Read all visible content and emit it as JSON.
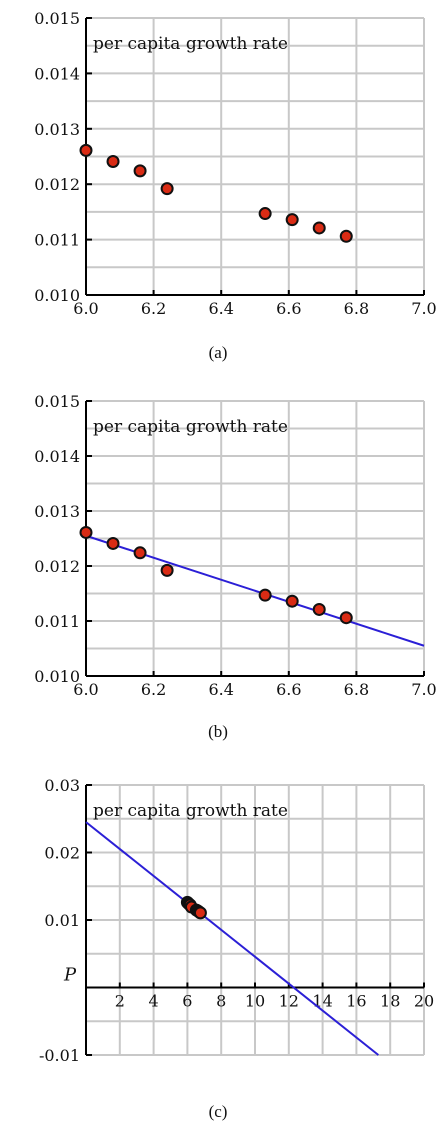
{
  "chart_data": [
    {
      "type": "scatter",
      "title": "per capita growth rate",
      "caption": "(a)",
      "xlim": [
        6.0,
        7.0
      ],
      "ylim": [
        0.01,
        0.015
      ],
      "xticks": [
        "6.0",
        "6.2",
        "6.4",
        "6.6",
        "6.8",
        "7.0"
      ],
      "yticks": [
        "0.010",
        "0.011",
        "0.012",
        "0.013",
        "0.014",
        "0.015"
      ],
      "grid": true,
      "points": [
        {
          "x": 6.0,
          "y": 0.01261
        },
        {
          "x": 6.08,
          "y": 0.01241
        },
        {
          "x": 6.16,
          "y": 0.01224
        },
        {
          "x": 6.24,
          "y": 0.01192
        },
        {
          "x": 6.53,
          "y": 0.01147
        },
        {
          "x": 6.61,
          "y": 0.01136
        },
        {
          "x": 6.69,
          "y": 0.01121
        },
        {
          "x": 6.77,
          "y": 0.01106
        }
      ]
    },
    {
      "type": "scatter",
      "title": "per capita growth rate",
      "caption": "(b)",
      "xlim": [
        6.0,
        7.0
      ],
      "ylim": [
        0.01,
        0.015
      ],
      "xticks": [
        "6.0",
        "6.2",
        "6.4",
        "6.6",
        "6.8",
        "7.0"
      ],
      "yticks": [
        "0.010",
        "0.011",
        "0.012",
        "0.013",
        "0.014",
        "0.015"
      ],
      "grid": true,
      "points": [
        {
          "x": 6.0,
          "y": 0.01261
        },
        {
          "x": 6.08,
          "y": 0.01241
        },
        {
          "x": 6.16,
          "y": 0.01224
        },
        {
          "x": 6.24,
          "y": 0.01192
        },
        {
          "x": 6.53,
          "y": 0.01147
        },
        {
          "x": 6.61,
          "y": 0.01136
        },
        {
          "x": 6.69,
          "y": 0.01121
        },
        {
          "x": 6.77,
          "y": 0.01106
        }
      ],
      "fit_line": [
        {
          "x": 6.0,
          "y": 0.01255
        },
        {
          "x": 7.0,
          "y": 0.01055
        }
      ]
    },
    {
      "type": "scatter",
      "title": "per capita growth rate",
      "caption": "(c)",
      "axis_label": "P",
      "xlim": [
        0,
        20
      ],
      "ylim": [
        -0.01,
        0.03
      ],
      "xticks": [
        "2",
        "4",
        "6",
        "8",
        "10",
        "12",
        "14",
        "16",
        "18",
        "20"
      ],
      "yticks": [
        "-0.01",
        "0.01",
        "0.02",
        "0.03"
      ],
      "grid": true,
      "points": [
        {
          "x": 6.0,
          "y": 0.01261
        },
        {
          "x": 6.08,
          "y": 0.01241
        },
        {
          "x": 6.16,
          "y": 0.01224
        },
        {
          "x": 6.24,
          "y": 0.01192
        },
        {
          "x": 6.53,
          "y": 0.01147
        },
        {
          "x": 6.61,
          "y": 0.01136
        },
        {
          "x": 6.69,
          "y": 0.01121
        },
        {
          "x": 6.77,
          "y": 0.01106
        }
      ],
      "fit_line": [
        {
          "x": 0,
          "y": 0.0245
        },
        {
          "x": 17.3,
          "y": -0.01
        }
      ]
    }
  ]
}
